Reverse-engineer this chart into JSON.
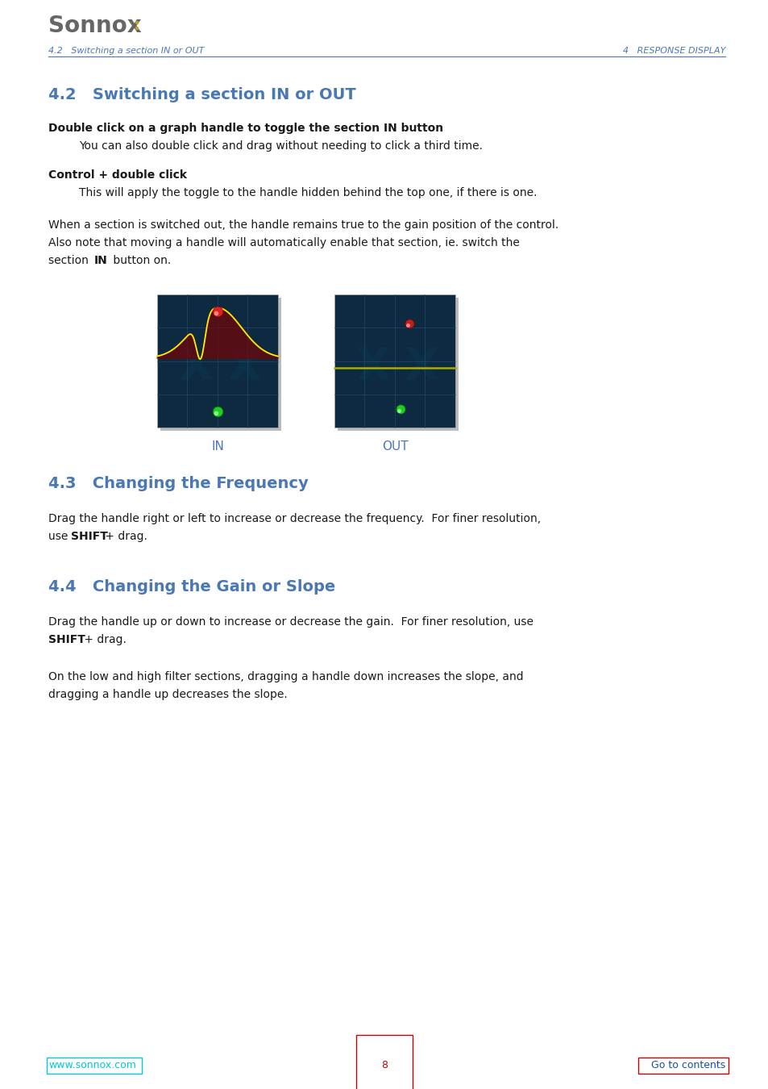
{
  "page_width": 9.54,
  "page_height": 13.5,
  "dpi": 100,
  "bg_color": "#ffffff",
  "logo_text": "Sonnox",
  "logo_color": "#666666",
  "logo_accent_color": "#c8a020",
  "header_left": "4.2   Switching a section IN or OUT",
  "header_right": "4   RESPONSE DISPLAY",
  "header_color": "#4a78b5",
  "section_42_title": "4.2   Switching a section IN or OUT",
  "section_43_title": "4.3   Changing the Frequency",
  "section_44_title": "4.4   Changing the Gain or Slope",
  "section_title_color": "#4a78b5",
  "text_color": "#1a1a1a",
  "label_color": "#4a78b5",
  "footer_left": "www.sonnox.com",
  "footer_center": "8",
  "footer_right": "Go to contents",
  "footer_left_color": "#00c8d4",
  "footer_center_color": "#cc0000",
  "footer_right_color": "#1a50a0",
  "footer_right_box_color": "#cc0000",
  "footer_left_box_color": "#00c8d4"
}
